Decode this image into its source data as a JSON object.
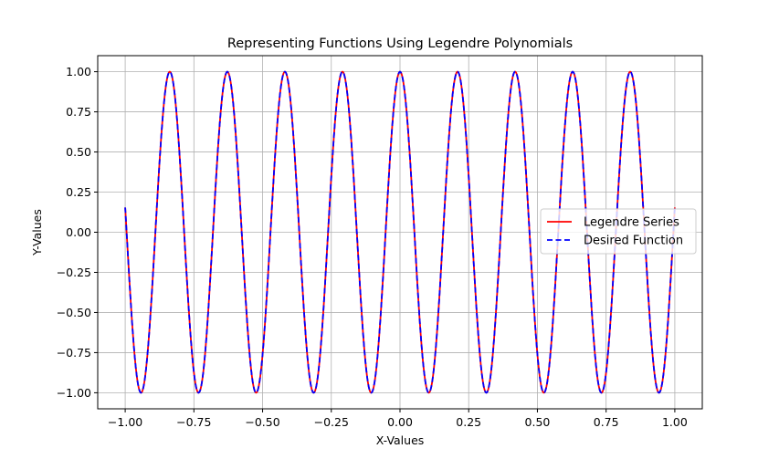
{
  "chart_data": {
    "type": "line",
    "title": "Representing Functions Using Legendre Polynomials",
    "xlabel": "X-Values",
    "ylabel": "Y-Values",
    "xlim": [
      -1.1,
      1.1
    ],
    "ylim": [
      -1.1,
      1.1
    ],
    "xticks": [
      -1.0,
      -0.75,
      -0.5,
      -0.25,
      0.0,
      0.25,
      0.5,
      0.75,
      1.0
    ],
    "xtick_labels": [
      "−1.00",
      "−0.75",
      "−0.50",
      "−0.25",
      "0.00",
      "0.25",
      "0.50",
      "0.75",
      "1.00"
    ],
    "yticks": [
      1.0,
      0.75,
      0.5,
      0.25,
      0.0,
      -0.25,
      -0.5,
      -0.75,
      -1.0
    ],
    "ytick_labels": [
      "1.00",
      "0.75",
      "0.50",
      "0.25",
      "0.00",
      "−0.25",
      "−0.50",
      "−0.75",
      "−1.00"
    ],
    "grid": true,
    "legend_position": "center-right",
    "series": [
      {
        "name": "Legendre Series",
        "color": "#ff0000",
        "style": "solid",
        "function": "cos(30*x)",
        "x_range": [
          -1.0,
          1.0
        ]
      },
      {
        "name": "Desired Function",
        "color": "#0000ff",
        "style": "dashed",
        "function": "cos(30*x)",
        "x_range": [
          -1.0,
          1.0
        ]
      }
    ]
  }
}
